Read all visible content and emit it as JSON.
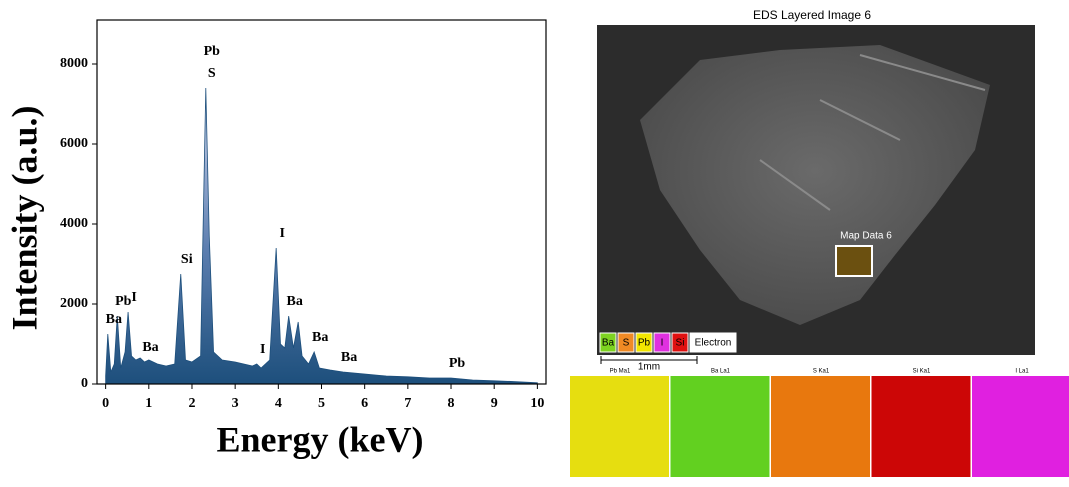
{
  "chart_data": {
    "type": "area",
    "xlabel": "Energy (keV)",
    "ylabel": "Intensity (a.u.)",
    "x": [
      0.0,
      0.05,
      0.12,
      0.2,
      0.27,
      0.35,
      0.45,
      0.52,
      0.6,
      0.7,
      0.8,
      0.9,
      1.0,
      1.2,
      1.4,
      1.6,
      1.74,
      1.85,
      2.0,
      2.2,
      2.32,
      2.4,
      2.5,
      2.7,
      3.0,
      3.2,
      3.4,
      3.5,
      3.6,
      3.8,
      3.95,
      4.05,
      4.15,
      4.24,
      4.35,
      4.46,
      4.55,
      4.7,
      4.83,
      4.95,
      5.2,
      5.5,
      6.0,
      6.5,
      7.0,
      7.5,
      8.0,
      8.5,
      9.0,
      9.5,
      10.0
    ],
    "values": [
      200,
      1250,
      300,
      500,
      1700,
      400,
      800,
      1800,
      700,
      600,
      650,
      550,
      600,
      500,
      450,
      500,
      2750,
      600,
      550,
      700,
      7400,
      3700,
      800,
      600,
      550,
      500,
      450,
      500,
      400,
      600,
      3400,
      1000,
      900,
      1700,
      900,
      1550,
      700,
      500,
      800,
      400,
      350,
      300,
      250,
      200,
      180,
      150,
      150,
      100,
      80,
      60,
      30
    ],
    "color": "#1d4f7c",
    "xlim": [
      -0.2,
      10.2
    ],
    "ylim": [
      0,
      9100
    ],
    "xticks": [
      0,
      1,
      2,
      3,
      4,
      5,
      6,
      7,
      8,
      9,
      10
    ],
    "yticks": [
      0,
      2000,
      4000,
      6000,
      8000
    ],
    "annotations": [
      {
        "text": "Ba",
        "x": 0.05
      },
      {
        "text": "Pb",
        "x": 0.27
      },
      {
        "text": "I",
        "x": 0.52
      },
      {
        "text": "Ba",
        "x": 0.9
      },
      {
        "text": "Si",
        "x": 1.74
      },
      {
        "text": "S",
        "x": 2.32
      },
      {
        "text": "Pb",
        "x": 2.32
      },
      {
        "text": "I",
        "x": 3.5
      },
      {
        "text": "I",
        "x": 3.95
      },
      {
        "text": "Ba",
        "x": 4.24
      },
      {
        "text": "Ba",
        "x": 4.83
      },
      {
        "text": "Ba",
        "x": 5.5
      },
      {
        "text": "Pb",
        "x": 8.0
      }
    ]
  },
  "eds_image": {
    "title": "EDS Layered Image 6",
    "region_label": "Map Data 6",
    "scale_bar": "1mm",
    "legend": [
      {
        "name": "Ba",
        "color": "#7ed321"
      },
      {
        "name": "S",
        "color": "#f08a24"
      },
      {
        "name": "Pb",
        "color": "#f2e600"
      },
      {
        "name": "I",
        "color": "#e030e0"
      },
      {
        "name": "Si",
        "color": "#e01010"
      },
      {
        "name": "Electron",
        "color": "#ffffff"
      }
    ],
    "maps": [
      {
        "title": "Pb Ma1",
        "color": "#e6de10"
      },
      {
        "title": "Ba La1",
        "color": "#62d020"
      },
      {
        "title": "S Ka1",
        "color": "#e8780e"
      },
      {
        "title": "Si Ka1",
        "color": "#cc0606"
      },
      {
        "title": "I La1",
        "color": "#e020e0"
      }
    ]
  }
}
